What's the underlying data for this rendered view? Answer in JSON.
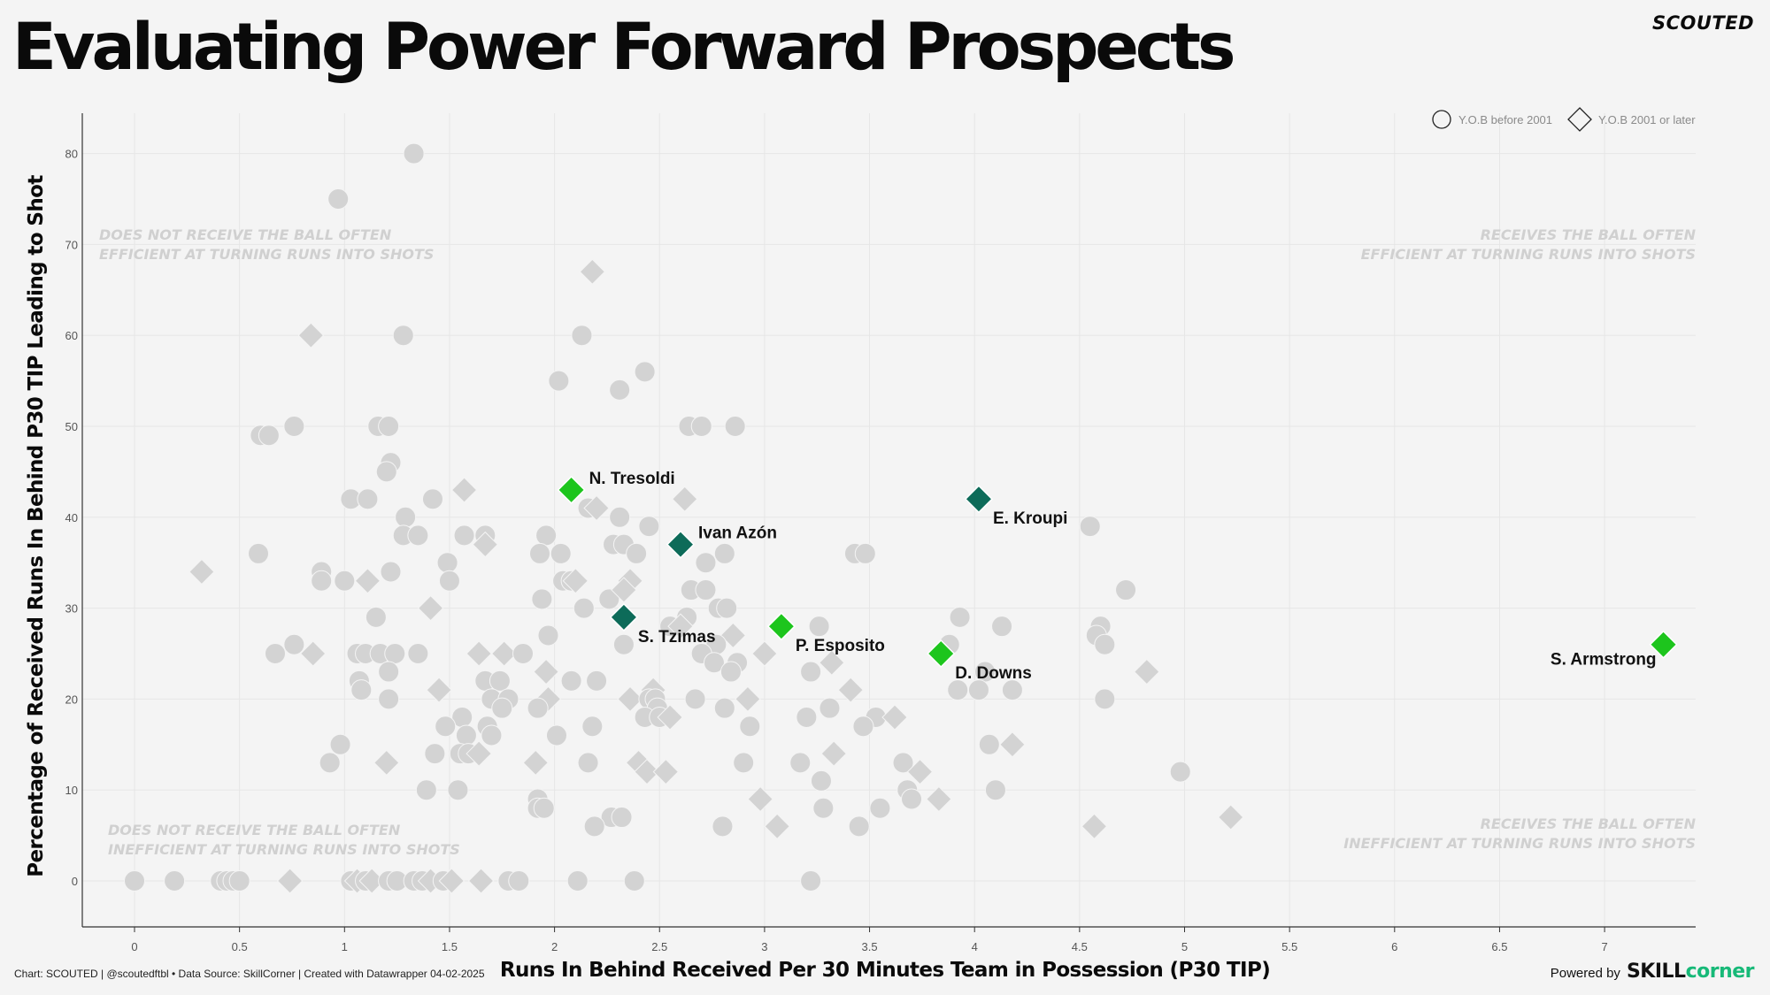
{
  "header": {
    "title": "Evaluating Power Forward Prospects",
    "brand": "SCOUTED"
  },
  "footer": {
    "credits": "Chart: SCOUTED | @scoutedftbl • Data Source: SkillCorner | Created with Datawrapper 04-02-2025",
    "powered_by": "Powered by",
    "logo_part1": "SKILL",
    "logo_part2": "corner"
  },
  "colors": {
    "background": "#f4f4f4",
    "grey_point": "#d3d3d3",
    "highlight_light": "#1dc51d",
    "highlight_dark": "#0d6b59",
    "annotation": "#d0d0d0",
    "grid": "#e6e6e6"
  },
  "chart_data": {
    "type": "scatter",
    "title": "Evaluating Power Forward Prospects",
    "xlabel": "Runs In Behind Received Per 30 Minutes Team in Possession (P30 TIP)",
    "ylabel": "Percentage of Received Runs In Behind P30 TIP Leading to Shot",
    "xlim": [
      -0.25,
      7.5
    ],
    "ylim": [
      -5,
      85
    ],
    "x_ticks": [
      "0",
      "0.5",
      "1",
      "1.5",
      "2",
      "2.5",
      "3",
      "3.5",
      "4",
      "4.5",
      "5",
      "5.5",
      "6",
      "6.5",
      "7"
    ],
    "y_ticks": [
      "0",
      "10",
      "20",
      "30",
      "40",
      "50",
      "60",
      "70",
      "80"
    ],
    "legend": [
      {
        "shape": "circle",
        "label": "Y.O.B before 2001"
      },
      {
        "shape": "diamond",
        "label": "Y.O.B 2001 or later"
      }
    ],
    "quadrant_annotations": [
      {
        "position": "top-left",
        "lines": [
          "DOES NOT RECEIVE THE BALL OFTEN",
          "EFFICIENT AT TURNING RUNS INTO SHOTS"
        ]
      },
      {
        "position": "top-right",
        "lines": [
          "RECEIVES THE BALL OFTEN",
          "EFFICIENT AT TURNING RUNS INTO SHOTS"
        ]
      },
      {
        "position": "bottom-left",
        "lines": [
          "DOES NOT RECEIVE THE BALL OFTEN",
          "INEFFICIENT AT TURNING RUNS INTO SHOTS"
        ]
      },
      {
        "position": "bottom-right",
        "lines": [
          "RECEIVES THE BALL OFTEN",
          "INEFFICIENT AT TURNING RUNS INTO SHOTS"
        ]
      }
    ],
    "highlighted": [
      {
        "name": "N. Tresoldi",
        "x": 2.08,
        "y": 43,
        "shape": "diamond",
        "color": "light",
        "label_side": "right"
      },
      {
        "name": "Ivan Azón",
        "x": 2.6,
        "y": 37,
        "shape": "diamond",
        "color": "dark",
        "label_side": "right"
      },
      {
        "name": "E. Kroupi",
        "x": 4.02,
        "y": 42,
        "shape": "diamond",
        "color": "dark",
        "label_side": "below-right"
      },
      {
        "name": "S. Tzimas",
        "x": 2.33,
        "y": 29,
        "shape": "diamond",
        "color": "dark",
        "label_side": "below-right"
      },
      {
        "name": "P. Esposito",
        "x": 3.08,
        "y": 28,
        "shape": "diamond",
        "color": "light",
        "label_side": "below-right"
      },
      {
        "name": "D. Downs",
        "x": 3.84,
        "y": 25,
        "shape": "diamond",
        "color": "light",
        "label_side": "below-right"
      },
      {
        "name": "S. Armstrong",
        "x": 7.28,
        "y": 26,
        "shape": "diamond",
        "color": "light",
        "label_side": "left"
      }
    ],
    "points": [
      {
        "x": 1.33,
        "y": 80,
        "s": "c"
      },
      {
        "x": 0.97,
        "y": 75,
        "s": "c"
      },
      {
        "x": 2.18,
        "y": 67,
        "s": "d"
      },
      {
        "x": 0.84,
        "y": 60,
        "s": "d"
      },
      {
        "x": 1.28,
        "y": 60,
        "s": "c"
      },
      {
        "x": 2.13,
        "y": 60,
        "s": "c"
      },
      {
        "x": 2.43,
        "y": 56,
        "s": "c"
      },
      {
        "x": 2.02,
        "y": 55,
        "s": "c"
      },
      {
        "x": 2.31,
        "y": 54,
        "s": "c"
      },
      {
        "x": 0.6,
        "y": 49,
        "s": "c"
      },
      {
        "x": 0.64,
        "y": 49,
        "s": "c"
      },
      {
        "x": 0.76,
        "y": 50,
        "s": "c"
      },
      {
        "x": 1.16,
        "y": 50,
        "s": "c"
      },
      {
        "x": 1.21,
        "y": 50,
        "s": "c"
      },
      {
        "x": 2.64,
        "y": 50,
        "s": "c"
      },
      {
        "x": 2.7,
        "y": 50,
        "s": "c"
      },
      {
        "x": 2.86,
        "y": 50,
        "s": "c"
      },
      {
        "x": 1.22,
        "y": 46,
        "s": "c"
      },
      {
        "x": 1.2,
        "y": 45,
        "s": "c"
      },
      {
        "x": 1.57,
        "y": 43,
        "s": "d"
      },
      {
        "x": 2.62,
        "y": 42,
        "s": "d"
      },
      {
        "x": 1.03,
        "y": 42,
        "s": "c"
      },
      {
        "x": 1.11,
        "y": 42,
        "s": "c"
      },
      {
        "x": 1.42,
        "y": 42,
        "s": "c"
      },
      {
        "x": 2.16,
        "y": 41,
        "s": "c"
      },
      {
        "x": 2.2,
        "y": 41,
        "s": "d"
      },
      {
        "x": 1.29,
        "y": 40,
        "s": "c"
      },
      {
        "x": 2.31,
        "y": 40,
        "s": "c"
      },
      {
        "x": 2.45,
        "y": 39,
        "s": "c"
      },
      {
        "x": 4.55,
        "y": 39,
        "s": "c"
      },
      {
        "x": 1.28,
        "y": 38,
        "s": "c"
      },
      {
        "x": 1.35,
        "y": 38,
        "s": "c"
      },
      {
        "x": 1.57,
        "y": 38,
        "s": "c"
      },
      {
        "x": 1.67,
        "y": 38,
        "s": "c"
      },
      {
        "x": 1.96,
        "y": 38,
        "s": "c"
      },
      {
        "x": 1.67,
        "y": 37,
        "s": "d"
      },
      {
        "x": 2.28,
        "y": 37,
        "s": "c"
      },
      {
        "x": 2.33,
        "y": 37,
        "s": "c"
      },
      {
        "x": 0.59,
        "y": 36,
        "s": "c"
      },
      {
        "x": 1.93,
        "y": 36,
        "s": "c"
      },
      {
        "x": 2.03,
        "y": 36,
        "s": "c"
      },
      {
        "x": 2.39,
        "y": 36,
        "s": "c"
      },
      {
        "x": 2.81,
        "y": 36,
        "s": "c"
      },
      {
        "x": 3.43,
        "y": 36,
        "s": "c"
      },
      {
        "x": 3.48,
        "y": 36,
        "s": "c"
      },
      {
        "x": 1.49,
        "y": 35,
        "s": "c"
      },
      {
        "x": 2.72,
        "y": 35,
        "s": "c"
      },
      {
        "x": 0.32,
        "y": 34,
        "s": "d"
      },
      {
        "x": 0.89,
        "y": 34,
        "s": "c"
      },
      {
        "x": 1.22,
        "y": 34,
        "s": "c"
      },
      {
        "x": 0.89,
        "y": 33,
        "s": "c"
      },
      {
        "x": 1.0,
        "y": 33,
        "s": "c"
      },
      {
        "x": 1.11,
        "y": 33,
        "s": "d"
      },
      {
        "x": 1.5,
        "y": 33,
        "s": "c"
      },
      {
        "x": 2.04,
        "y": 33,
        "s": "c"
      },
      {
        "x": 2.08,
        "y": 33,
        "s": "c"
      },
      {
        "x": 2.1,
        "y": 33,
        "s": "d"
      },
      {
        "x": 2.36,
        "y": 33,
        "s": "d"
      },
      {
        "x": 2.65,
        "y": 32,
        "s": "c"
      },
      {
        "x": 2.72,
        "y": 32,
        "s": "c"
      },
      {
        "x": 4.72,
        "y": 32,
        "s": "c"
      },
      {
        "x": 1.94,
        "y": 31,
        "s": "c"
      },
      {
        "x": 2.26,
        "y": 31,
        "s": "c"
      },
      {
        "x": 2.33,
        "y": 32,
        "s": "d"
      },
      {
        "x": 1.41,
        "y": 30,
        "s": "d"
      },
      {
        "x": 2.14,
        "y": 30,
        "s": "c"
      },
      {
        "x": 2.78,
        "y": 30,
        "s": "c"
      },
      {
        "x": 2.82,
        "y": 30,
        "s": "c"
      },
      {
        "x": 1.15,
        "y": 29,
        "s": "c"
      },
      {
        "x": 2.63,
        "y": 29,
        "s": "c"
      },
      {
        "x": 3.93,
        "y": 29,
        "s": "c"
      },
      {
        "x": 2.55,
        "y": 28,
        "s": "c"
      },
      {
        "x": 2.6,
        "y": 28,
        "s": "d"
      },
      {
        "x": 3.26,
        "y": 28,
        "s": "c"
      },
      {
        "x": 4.13,
        "y": 28,
        "s": "c"
      },
      {
        "x": 4.6,
        "y": 28,
        "s": "c"
      },
      {
        "x": 1.97,
        "y": 27,
        "s": "c"
      },
      {
        "x": 2.85,
        "y": 27,
        "s": "d"
      },
      {
        "x": 4.58,
        "y": 27,
        "s": "c"
      },
      {
        "x": 0.76,
        "y": 26,
        "s": "c"
      },
      {
        "x": 2.33,
        "y": 26,
        "s": "c"
      },
      {
        "x": 2.77,
        "y": 26,
        "s": "c"
      },
      {
        "x": 3.88,
        "y": 26,
        "s": "c"
      },
      {
        "x": 4.62,
        "y": 26,
        "s": "c"
      },
      {
        "x": 0.67,
        "y": 25,
        "s": "c"
      },
      {
        "x": 0.85,
        "y": 25,
        "s": "d"
      },
      {
        "x": 1.06,
        "y": 25,
        "s": "c"
      },
      {
        "x": 1.1,
        "y": 25,
        "s": "c"
      },
      {
        "x": 1.17,
        "y": 25,
        "s": "c"
      },
      {
        "x": 1.24,
        "y": 25,
        "s": "c"
      },
      {
        "x": 1.35,
        "y": 25,
        "s": "c"
      },
      {
        "x": 1.64,
        "y": 25,
        "s": "d"
      },
      {
        "x": 1.76,
        "y": 25,
        "s": "d"
      },
      {
        "x": 1.85,
        "y": 25,
        "s": "c"
      },
      {
        "x": 2.7,
        "y": 25,
        "s": "c"
      },
      {
        "x": 3.0,
        "y": 25,
        "s": "d"
      },
      {
        "x": 2.76,
        "y": 24,
        "s": "c"
      },
      {
        "x": 2.87,
        "y": 24,
        "s": "c"
      },
      {
        "x": 3.32,
        "y": 24,
        "s": "d"
      },
      {
        "x": 1.21,
        "y": 23,
        "s": "c"
      },
      {
        "x": 1.96,
        "y": 23,
        "s": "d"
      },
      {
        "x": 2.84,
        "y": 23,
        "s": "c"
      },
      {
        "x": 3.22,
        "y": 23,
        "s": "c"
      },
      {
        "x": 4.05,
        "y": 23,
        "s": "c"
      },
      {
        "x": 4.82,
        "y": 23,
        "s": "d"
      },
      {
        "x": 1.07,
        "y": 22,
        "s": "c"
      },
      {
        "x": 1.67,
        "y": 22,
        "s": "c"
      },
      {
        "x": 1.74,
        "y": 22,
        "s": "c"
      },
      {
        "x": 2.08,
        "y": 22,
        "s": "c"
      },
      {
        "x": 2.2,
        "y": 22,
        "s": "c"
      },
      {
        "x": 1.08,
        "y": 21,
        "s": "c"
      },
      {
        "x": 1.45,
        "y": 21,
        "s": "d"
      },
      {
        "x": 2.47,
        "y": 21,
        "s": "d"
      },
      {
        "x": 3.41,
        "y": 21,
        "s": "d"
      },
      {
        "x": 3.92,
        "y": 21,
        "s": "c"
      },
      {
        "x": 4.02,
        "y": 21,
        "s": "c"
      },
      {
        "x": 4.18,
        "y": 21,
        "s": "c"
      },
      {
        "x": 1.21,
        "y": 20,
        "s": "c"
      },
      {
        "x": 1.7,
        "y": 20,
        "s": "c"
      },
      {
        "x": 1.78,
        "y": 20,
        "s": "c"
      },
      {
        "x": 1.97,
        "y": 20,
        "s": "d"
      },
      {
        "x": 2.36,
        "y": 20,
        "s": "d"
      },
      {
        "x": 2.45,
        "y": 20,
        "s": "c"
      },
      {
        "x": 2.48,
        "y": 20,
        "s": "c"
      },
      {
        "x": 2.67,
        "y": 20,
        "s": "c"
      },
      {
        "x": 2.92,
        "y": 20,
        "s": "d"
      },
      {
        "x": 4.62,
        "y": 20,
        "s": "c"
      },
      {
        "x": 1.75,
        "y": 19,
        "s": "c"
      },
      {
        "x": 1.92,
        "y": 19,
        "s": "c"
      },
      {
        "x": 2.49,
        "y": 19,
        "s": "c"
      },
      {
        "x": 2.81,
        "y": 19,
        "s": "c"
      },
      {
        "x": 3.31,
        "y": 19,
        "s": "c"
      },
      {
        "x": 1.56,
        "y": 18,
        "s": "c"
      },
      {
        "x": 2.43,
        "y": 18,
        "s": "c"
      },
      {
        "x": 2.5,
        "y": 18,
        "s": "c"
      },
      {
        "x": 2.55,
        "y": 18,
        "s": "d"
      },
      {
        "x": 3.2,
        "y": 18,
        "s": "c"
      },
      {
        "x": 3.53,
        "y": 18,
        "s": "c"
      },
      {
        "x": 3.62,
        "y": 18,
        "s": "d"
      },
      {
        "x": 1.48,
        "y": 17,
        "s": "c"
      },
      {
        "x": 1.68,
        "y": 17,
        "s": "c"
      },
      {
        "x": 2.18,
        "y": 17,
        "s": "c"
      },
      {
        "x": 2.93,
        "y": 17,
        "s": "c"
      },
      {
        "x": 3.47,
        "y": 17,
        "s": "c"
      },
      {
        "x": 1.58,
        "y": 16,
        "s": "c"
      },
      {
        "x": 1.7,
        "y": 16,
        "s": "c"
      },
      {
        "x": 2.01,
        "y": 16,
        "s": "c"
      },
      {
        "x": 0.98,
        "y": 15,
        "s": "c"
      },
      {
        "x": 4.07,
        "y": 15,
        "s": "c"
      },
      {
        "x": 4.18,
        "y": 15,
        "s": "d"
      },
      {
        "x": 1.43,
        "y": 14,
        "s": "c"
      },
      {
        "x": 1.55,
        "y": 14,
        "s": "c"
      },
      {
        "x": 1.59,
        "y": 14,
        "s": "c"
      },
      {
        "x": 1.64,
        "y": 14,
        "s": "d"
      },
      {
        "x": 3.33,
        "y": 14,
        "s": "d"
      },
      {
        "x": 0.93,
        "y": 13,
        "s": "c"
      },
      {
        "x": 1.2,
        "y": 13,
        "s": "d"
      },
      {
        "x": 1.91,
        "y": 13,
        "s": "d"
      },
      {
        "x": 2.16,
        "y": 13,
        "s": "c"
      },
      {
        "x": 2.4,
        "y": 13,
        "s": "d"
      },
      {
        "x": 2.9,
        "y": 13,
        "s": "c"
      },
      {
        "x": 3.17,
        "y": 13,
        "s": "c"
      },
      {
        "x": 3.66,
        "y": 13,
        "s": "c"
      },
      {
        "x": 2.44,
        "y": 12,
        "s": "d"
      },
      {
        "x": 2.53,
        "y": 12,
        "s": "d"
      },
      {
        "x": 3.74,
        "y": 12,
        "s": "d"
      },
      {
        "x": 4.98,
        "y": 12,
        "s": "c"
      },
      {
        "x": 3.27,
        "y": 11,
        "s": "c"
      },
      {
        "x": 1.39,
        "y": 10,
        "s": "c"
      },
      {
        "x": 1.54,
        "y": 10,
        "s": "c"
      },
      {
        "x": 3.68,
        "y": 10,
        "s": "c"
      },
      {
        "x": 4.1,
        "y": 10,
        "s": "c"
      },
      {
        "x": 1.92,
        "y": 9,
        "s": "c"
      },
      {
        "x": 2.98,
        "y": 9,
        "s": "d"
      },
      {
        "x": 3.7,
        "y": 9,
        "s": "c"
      },
      {
        "x": 3.83,
        "y": 9,
        "s": "d"
      },
      {
        "x": 1.92,
        "y": 8,
        "s": "c"
      },
      {
        "x": 1.95,
        "y": 8,
        "s": "c"
      },
      {
        "x": 3.28,
        "y": 8,
        "s": "c"
      },
      {
        "x": 3.55,
        "y": 8,
        "s": "c"
      },
      {
        "x": 2.27,
        "y": 7,
        "s": "c"
      },
      {
        "x": 2.32,
        "y": 7,
        "s": "c"
      },
      {
        "x": 5.22,
        "y": 7,
        "s": "d"
      },
      {
        "x": 2.19,
        "y": 6,
        "s": "c"
      },
      {
        "x": 2.8,
        "y": 6,
        "s": "c"
      },
      {
        "x": 3.06,
        "y": 6,
        "s": "d"
      },
      {
        "x": 3.45,
        "y": 6,
        "s": "c"
      },
      {
        "x": 4.57,
        "y": 6,
        "s": "d"
      },
      {
        "x": 0.0,
        "y": 0,
        "s": "c"
      },
      {
        "x": 0.19,
        "y": 0,
        "s": "c"
      },
      {
        "x": 0.41,
        "y": 0,
        "s": "c"
      },
      {
        "x": 0.44,
        "y": 0,
        "s": "c"
      },
      {
        "x": 0.47,
        "y": 0,
        "s": "c"
      },
      {
        "x": 0.5,
        "y": 0,
        "s": "c"
      },
      {
        "x": 0.74,
        "y": 0,
        "s": "d"
      },
      {
        "x": 1.03,
        "y": 0,
        "s": "c"
      },
      {
        "x": 1.06,
        "y": 0,
        "s": "d"
      },
      {
        "x": 1.1,
        "y": 0,
        "s": "c"
      },
      {
        "x": 1.13,
        "y": 0,
        "s": "d"
      },
      {
        "x": 1.21,
        "y": 0,
        "s": "c"
      },
      {
        "x": 1.25,
        "y": 0,
        "s": "c"
      },
      {
        "x": 1.33,
        "y": 0,
        "s": "c"
      },
      {
        "x": 1.37,
        "y": 0,
        "s": "c"
      },
      {
        "x": 1.41,
        "y": 0,
        "s": "d"
      },
      {
        "x": 1.47,
        "y": 0,
        "s": "c"
      },
      {
        "x": 1.51,
        "y": 0,
        "s": "d"
      },
      {
        "x": 1.65,
        "y": 0,
        "s": "d"
      },
      {
        "x": 1.78,
        "y": 0,
        "s": "c"
      },
      {
        "x": 1.83,
        "y": 0,
        "s": "c"
      },
      {
        "x": 2.11,
        "y": 0,
        "s": "c"
      },
      {
        "x": 2.38,
        "y": 0,
        "s": "c"
      },
      {
        "x": 3.22,
        "y": 0,
        "s": "c"
      }
    ]
  }
}
